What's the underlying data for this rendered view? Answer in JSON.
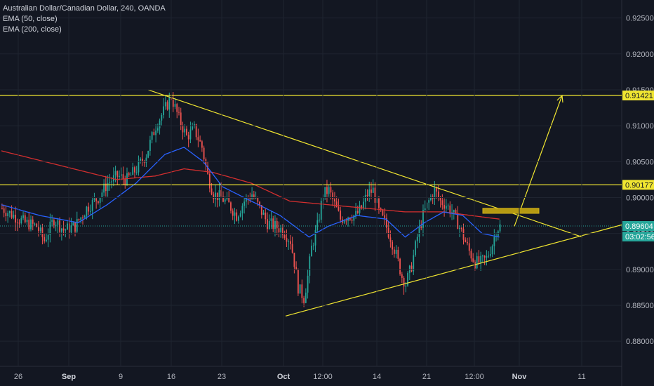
{
  "header": {
    "title": "Australian Dollar/Canadian Dollar, 240, OANDA",
    "indicators": [
      "EMA (50, close)",
      "EMA (200, close)"
    ]
  },
  "colors": {
    "background": "#131722",
    "up_candle": "#26a69a",
    "down_candle": "#ef5350",
    "ema50": "#2962ff",
    "ema200": "#d32f2f",
    "drawing": "#f0e531",
    "zone": "#b59a12",
    "current_line": "#26a69a",
    "axis_text": "#b2b5be"
  },
  "chart_data": {
    "type": "candlestick",
    "title": "Australian Dollar/Canadian Dollar, 240, OANDA",
    "xlabel": "",
    "ylabel": "",
    "ylim": [
      0.8765,
      0.9275
    ],
    "x_ticks": [
      {
        "label": "26",
        "bold": false
      },
      {
        "label": "Sep",
        "bold": true
      },
      {
        "label": "9",
        "bold": false
      },
      {
        "label": "16",
        "bold": false
      },
      {
        "label": "23",
        "bold": false
      },
      {
        "label": "Oct",
        "bold": true
      },
      {
        "label": "12:00",
        "bold": false
      },
      {
        "label": "14",
        "bold": false
      },
      {
        "label": "21",
        "bold": false
      },
      {
        "label": "12:00",
        "bold": false
      },
      {
        "label": "Nov",
        "bold": true
      },
      {
        "label": "11",
        "bold": false
      }
    ],
    "y_ticks": [
      "0.92500",
      "0.92000",
      "0.91500",
      "0.91000",
      "0.90500",
      "0.90000",
      "0.89500",
      "0.89000",
      "0.88500",
      "0.88000"
    ],
    "y_tick_values": [
      0.925,
      0.92,
      0.915,
      0.91,
      0.905,
      0.9,
      0.895,
      0.89,
      0.885,
      0.88
    ],
    "price_anchors": [
      [
        0,
        0.8985
      ],
      [
        6,
        0.8975
      ],
      [
        12,
        0.8965
      ],
      [
        18,
        0.896
      ],
      [
        22,
        0.894
      ],
      [
        27,
        0.897
      ],
      [
        32,
        0.8955
      ],
      [
        38,
        0.896
      ],
      [
        44,
        0.8985
      ],
      [
        50,
        0.9
      ],
      [
        55,
        0.902
      ],
      [
        60,
        0.903
      ],
      [
        65,
        0.9025
      ],
      [
        70,
        0.904
      ],
      [
        75,
        0.906
      ],
      [
        80,
        0.91
      ],
      [
        84,
        0.912
      ],
      [
        88,
        0.914
      ],
      [
        92,
        0.911
      ],
      [
        96,
        0.9085
      ],
      [
        100,
        0.9095
      ],
      [
        104,
        0.907
      ],
      [
        107,
        0.903
      ],
      [
        110,
        0.9005
      ],
      [
        114,
        0.9
      ],
      [
        118,
        0.899
      ],
      [
        122,
        0.8975
      ],
      [
        126,
        0.8995
      ],
      [
        130,
        0.9005
      ],
      [
        134,
        0.8985
      ],
      [
        138,
        0.8965
      ],
      [
        142,
        0.896
      ],
      [
        146,
        0.8955
      ],
      [
        150,
        0.894
      ],
      [
        152,
        0.891
      ],
      [
        154,
        0.8875
      ],
      [
        157,
        0.886
      ],
      [
        159,
        0.889
      ],
      [
        161,
        0.893
      ],
      [
        164,
        0.896
      ],
      [
        167,
        0.9005
      ],
      [
        170,
        0.901
      ],
      [
        173,
        0.899
      ],
      [
        176,
        0.897
      ],
      [
        180,
        0.8975
      ],
      [
        184,
        0.8975
      ],
      [
        187,
        0.8985
      ],
      [
        190,
        0.9005
      ],
      [
        193,
        0.901
      ],
      [
        196,
        0.898
      ],
      [
        199,
        0.8965
      ],
      [
        202,
        0.8945
      ],
      [
        205,
        0.892
      ],
      [
        208,
        0.889
      ],
      [
        210,
        0.888
      ],
      [
        213,
        0.8905
      ],
      [
        216,
        0.8945
      ],
      [
        219,
        0.8975
      ],
      [
        222,
        0.8995
      ],
      [
        225,
        0.901
      ],
      [
        228,
        0.8995
      ],
      [
        231,
        0.899
      ],
      [
        234,
        0.898
      ],
      [
        237,
        0.8965
      ],
      [
        240,
        0.8945
      ],
      [
        243,
        0.8925
      ],
      [
        246,
        0.891
      ],
      [
        249,
        0.891
      ],
      [
        252,
        0.8915
      ],
      [
        255,
        0.8935
      ],
      [
        257,
        0.8955
      ],
      [
        259,
        0.896
      ]
    ],
    "ema50_anchors": [
      [
        0,
        0.899
      ],
      [
        20,
        0.8975
      ],
      [
        40,
        0.8965
      ],
      [
        55,
        0.899
      ],
      [
        70,
        0.902
      ],
      [
        85,
        0.906
      ],
      [
        95,
        0.907
      ],
      [
        105,
        0.905
      ],
      [
        115,
        0.9015
      ],
      [
        130,
        0.8995
      ],
      [
        145,
        0.8975
      ],
      [
        160,
        0.8945
      ],
      [
        170,
        0.896
      ],
      [
        185,
        0.8975
      ],
      [
        200,
        0.897
      ],
      [
        210,
        0.8945
      ],
      [
        220,
        0.8965
      ],
      [
        230,
        0.898
      ],
      [
        240,
        0.8975
      ],
      [
        250,
        0.895
      ],
      [
        259,
        0.8945
      ]
    ],
    "ema200_anchors": [
      [
        0,
        0.9065
      ],
      [
        30,
        0.9045
      ],
      [
        60,
        0.9025
      ],
      [
        80,
        0.903
      ],
      [
        95,
        0.904
      ],
      [
        110,
        0.9035
      ],
      [
        130,
        0.902
      ],
      [
        150,
        0.8995
      ],
      [
        170,
        0.899
      ],
      [
        190,
        0.8985
      ],
      [
        210,
        0.898
      ],
      [
        230,
        0.898
      ],
      [
        250,
        0.8973
      ],
      [
        259,
        0.897
      ]
    ],
    "drawings": {
      "horizontal_levels": [
        0.91421,
        0.90177
      ],
      "descending_trendline": [
        [
          2019.625,
          0.915
        ],
        [
          2020.25,
          0.8945
        ]
      ],
      "ascending_trendline": [
        [
          2019.5,
          0.8835
        ],
        [
          2020.3,
          0.8962
        ]
      ],
      "projection_arrow": [
        [
          2019.93,
          0.896
        ],
        [
          2020.0,
          0.9142
        ]
      ],
      "target_zone": [
        0.8985,
        0.8978
      ]
    },
    "price_labels": [
      {
        "text": "0.91421",
        "value": 0.91421,
        "style": "yellow"
      },
      {
        "text": "0.90177",
        "value": 0.90177,
        "style": "yellow"
      },
      {
        "text": "0.89604",
        "value": 0.89604,
        "style": "green"
      },
      {
        "text": "03:02:56",
        "value": 0.89604,
        "style": "green-countdown"
      }
    ],
    "current_price": 0.89604
  }
}
